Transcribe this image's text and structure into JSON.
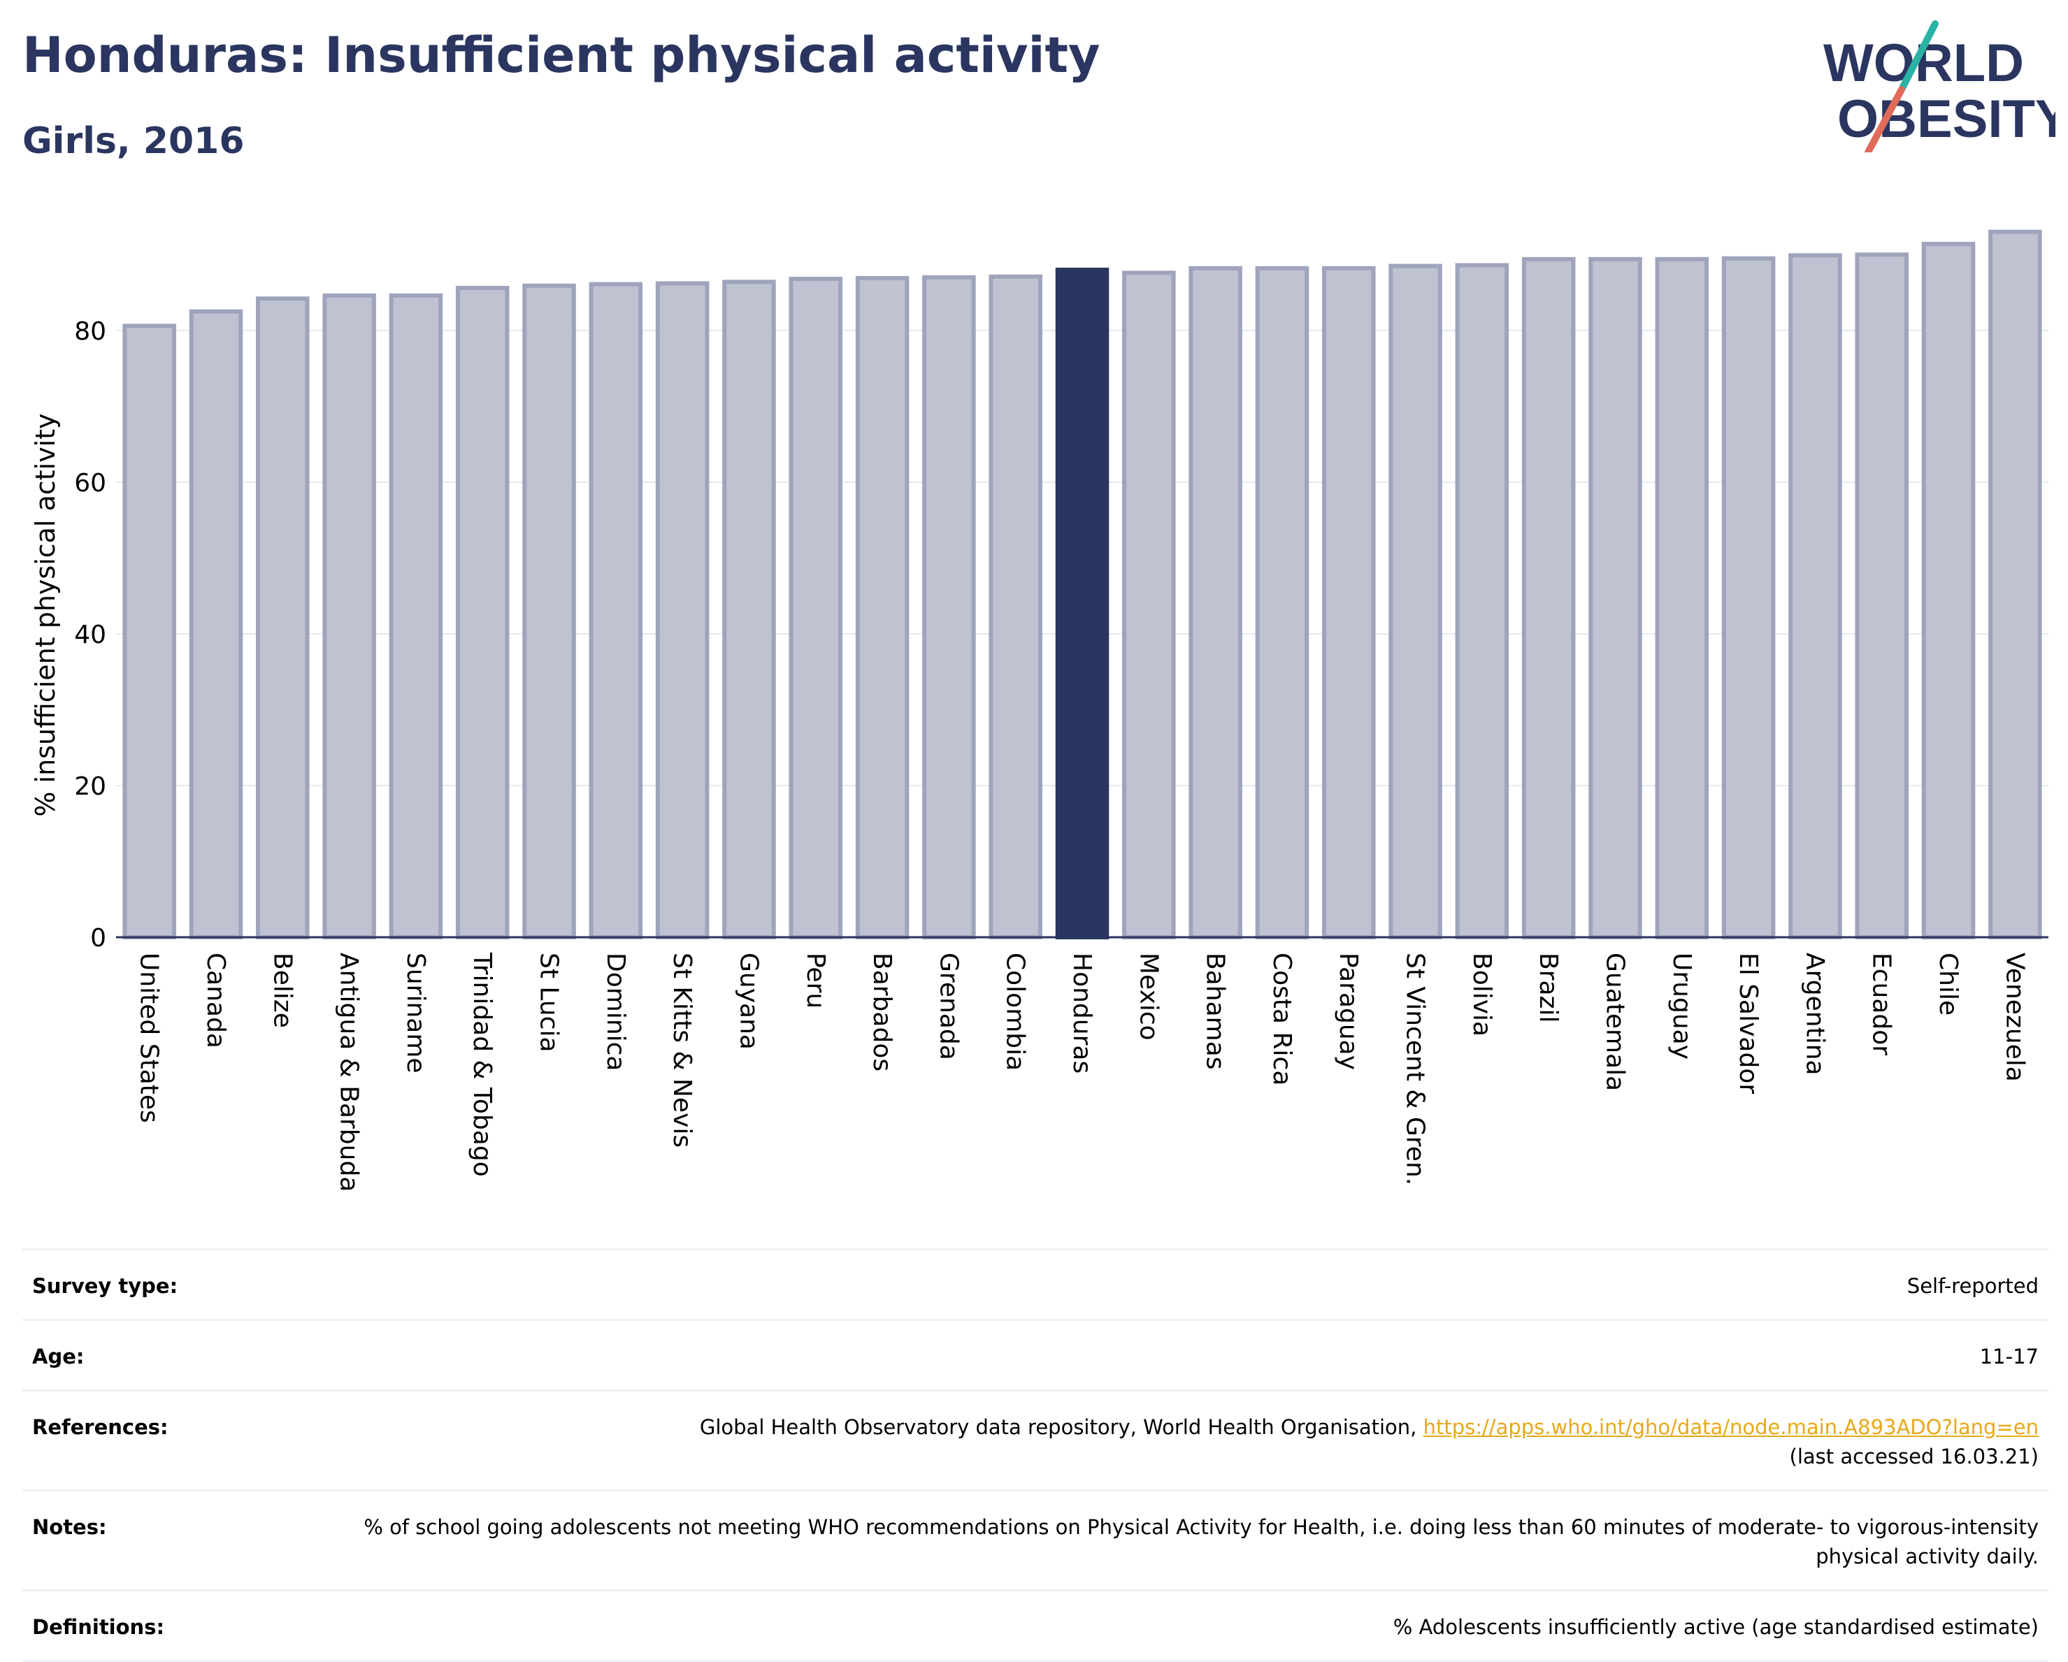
{
  "title": "Honduras: Insufficient physical activity",
  "subtitle": "Girls, 2016",
  "logo": {
    "line1": "WORLD",
    "line2": "OBESITY",
    "text_color": "#2a3560",
    "slash_colors": [
      "#2ab3a5",
      "#e06b5a"
    ]
  },
  "colors": {
    "bar": "#bfc2d0",
    "bar_border": "#9fa4bc",
    "highlight": "#2a3560",
    "grid": "#e6e8ee",
    "axis": "#2a3560"
  },
  "chart_data": {
    "type": "bar",
    "title": "",
    "xlabel": "",
    "ylabel": "% insufficient physical activity",
    "ylim": [
      0,
      95
    ],
    "yticks": [
      0,
      20,
      40,
      60,
      80
    ],
    "grid": true,
    "highlight": "Honduras",
    "categories": [
      "United States",
      "Canada",
      "Belize",
      "Antigua & Barbuda",
      "Suriname",
      "Trinidad & Tobago",
      "St Lucia",
      "Dominica",
      "St Kitts & Nevis",
      "Guyana",
      "Peru",
      "Barbados",
      "Grenada",
      "Colombia",
      "Honduras",
      "Mexico",
      "Bahamas",
      "Costa Rica",
      "Paraguay",
      "St Vincent & Gren.",
      "Bolivia",
      "Brazil",
      "Guatemala",
      "Uruguay",
      "El Salvador",
      "Argentina",
      "Ecuador",
      "Chile",
      "Venezuela"
    ],
    "values": [
      80.6,
      82.5,
      84.2,
      84.6,
      84.6,
      85.6,
      85.9,
      86.1,
      86.2,
      86.4,
      86.8,
      86.9,
      87.0,
      87.1,
      88.0,
      87.6,
      88.2,
      88.2,
      88.2,
      88.5,
      88.6,
      89.4,
      89.4,
      89.4,
      89.5,
      89.9,
      90.0,
      91.4,
      93.0
    ]
  },
  "meta": {
    "survey_label": "Survey type:",
    "survey_value": "Self-reported",
    "age_label": "Age:",
    "age_value": "11-17",
    "references_label": "References:",
    "references_text": "Global Health Observatory data repository, World Health Organisation,",
    "references_link": "https://apps.who.int/gho/data/node.main.A893ADO?lang=en",
    "references_accessed": "(last accessed 16.03.21)",
    "notes_label": "Notes:",
    "notes_value": "% of school going adolescents not meeting WHO recommendations on Physical Activity for Health, i.e. doing less than 60 minutes of moderate- to vigorous-intensity physical activity daily.",
    "definitions_label": "Definitions:",
    "definitions_value": "% Adolescents insufficiently active (age standardised estimate)"
  }
}
